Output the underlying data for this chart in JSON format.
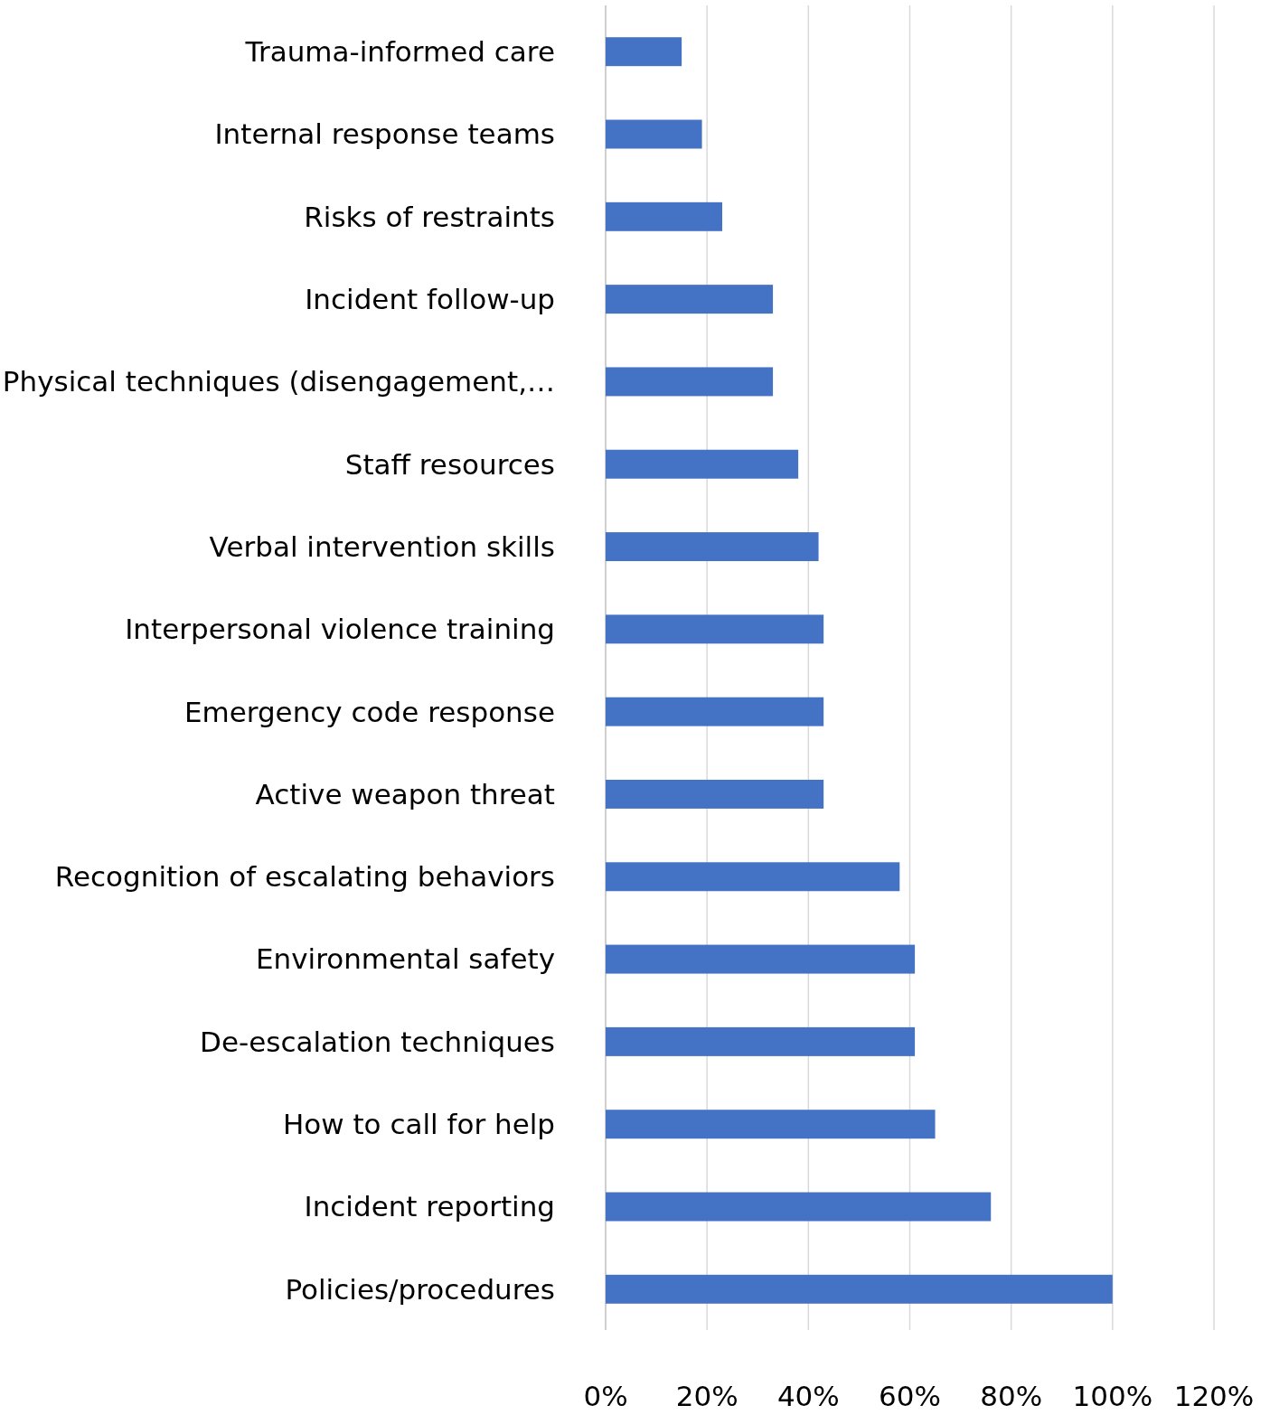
{
  "chart_data": {
    "type": "bar",
    "orientation": "horizontal",
    "categories": [
      "Trauma-informed care",
      "Internal response teams",
      "Risks of restraints",
      "Incident follow-up",
      "Physical techniques (disengagement,…",
      "Staff resources",
      "Verbal intervention skills",
      "Interpersonal violence training",
      "Emergency code response",
      "Active weapon threat",
      "Recognition of escalating behaviors",
      "Environmental safety",
      "De-escalation techniques",
      "How to call for help",
      "Incident reporting",
      "Policies/procedures"
    ],
    "values": [
      15,
      19,
      23,
      33,
      33,
      38,
      42,
      43,
      43,
      43,
      58,
      61,
      61,
      65,
      76,
      100
    ],
    "color": "#4472c4",
    "xlim": [
      0,
      120
    ],
    "xticks": [
      {
        "value": 0,
        "label": "0%"
      },
      {
        "value": 20,
        "label": "20%"
      },
      {
        "value": 40,
        "label": "40%"
      },
      {
        "value": 60,
        "label": "60%"
      },
      {
        "value": 80,
        "label": "80%"
      },
      {
        "value": 100,
        "label": "100%"
      },
      {
        "value": 120,
        "label": "120%"
      }
    ],
    "grid": "x"
  }
}
